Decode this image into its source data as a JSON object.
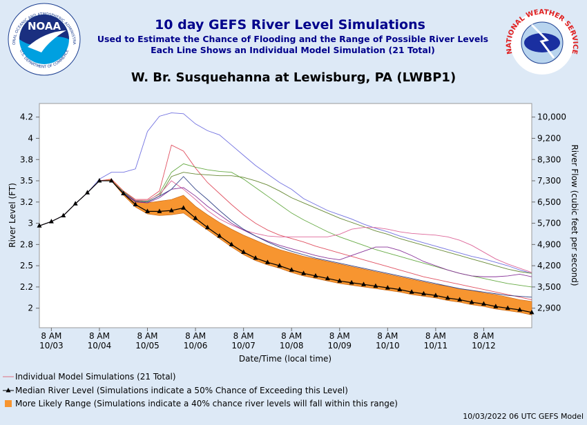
{
  "header": {
    "title": "10 day GEFS River Level Simulations",
    "subtitle1": "Used to Estimate the Chance of Flooding and the Range of Possible River Levels",
    "subtitle2": "Each Line Shows an Individual Model Simulation (21 Total)",
    "noaa_logo": "NOAA",
    "noaa_ring_top": "NATIONAL OCEANIC AND ATMOSPHERIC ADMINISTRATION",
    "noaa_ring_bottom": "U.S. DEPARTMENT OF COMMERCE",
    "nws_ring": "NATIONAL WEATHER SERVICE"
  },
  "chart_data": {
    "type": "line",
    "title": "W. Br. Susquehanna at Lewisburg, PA (LWBP1)",
    "xlabel": "Date/Time (local time)",
    "ylabel": "River Level (FT)",
    "y2label": "River Flow (cubic feet per second)",
    "x": [
      0,
      6,
      12,
      18,
      24,
      30,
      36,
      42,
      48,
      54,
      60,
      66,
      72,
      78,
      84,
      90,
      96,
      102,
      108,
      114,
      120,
      126,
      132,
      138,
      144,
      150,
      156,
      162,
      168,
      174,
      180,
      186,
      192,
      198,
      204,
      210,
      216,
      222,
      228,
      234,
      240,
      246
    ],
    "xlim": [
      0,
      246
    ],
    "xticks": [
      {
        "value": 6,
        "label": "8 AM",
        "date": "10/03"
      },
      {
        "value": 30,
        "label": "8 AM",
        "date": "10/04"
      },
      {
        "value": 54,
        "label": "8 AM",
        "date": "10/05"
      },
      {
        "value": 78,
        "label": "8 AM",
        "date": "10/06"
      },
      {
        "value": 102,
        "label": "8 AM",
        "date": "10/07"
      },
      {
        "value": 126,
        "label": "8 AM",
        "date": "10/08"
      },
      {
        "value": 150,
        "label": "8 AM",
        "date": "10/09"
      },
      {
        "value": 174,
        "label": "8 AM",
        "date": "10/10"
      },
      {
        "value": 198,
        "label": "8 AM",
        "date": "10/11"
      },
      {
        "value": 222,
        "label": "8 AM",
        "date": "10/12"
      }
    ],
    "ylim": [
      1.77,
      4.41
    ],
    "yticks": [
      {
        "value": 4.25,
        "label": "4.2"
      },
      4.0,
      {
        "value": 3.75,
        "label": "3.8"
      },
      3.5,
      {
        "value": 3.25,
        "label": "3.2"
      },
      3.0,
      {
        "value": 2.75,
        "label": "2.8"
      },
      2.5,
      {
        "value": 2.25,
        "label": "2.2"
      },
      2.0
    ],
    "y2ticks": [
      {
        "value": 10000,
        "label": "10,000"
      },
      {
        "value": 9200,
        "label": "9,200"
      },
      {
        "value": 8300,
        "label": "8,300"
      },
      {
        "value": 7300,
        "label": "7,300"
      },
      {
        "value": 6500,
        "label": "6,500"
      },
      {
        "value": 5700,
        "label": "5,700"
      },
      {
        "value": 4900,
        "label": "4,900"
      },
      {
        "value": 4200,
        "label": "4,200"
      },
      {
        "value": 3500,
        "label": "3,500"
      },
      {
        "value": 2900,
        "label": "2,900"
      }
    ],
    "simulations": {
      "name": "Individual Model Simulations (21 Total)",
      "color": "#e07080",
      "series": [
        {
          "color": "#7070e0",
          "values": [
            2.97,
            3.02,
            3.09,
            3.23,
            3.36,
            3.52,
            3.6,
            3.6,
            3.64,
            4.08,
            4.26,
            4.3,
            4.29,
            4.17,
            4.09,
            4.04,
            3.92,
            3.8,
            3.68,
            3.58,
            3.48,
            3.4,
            3.29,
            3.22,
            3.15,
            3.1,
            3.05,
            2.99,
            2.94,
            2.9,
            2.85,
            2.81,
            2.77,
            2.73,
            2.69,
            2.65,
            2.61,
            2.58,
            2.54,
            2.5,
            2.45,
            2.41
          ]
        },
        {
          "color": "#e05060",
          "values": [
            2.97,
            3.02,
            3.09,
            3.23,
            3.36,
            3.5,
            3.52,
            3.38,
            3.28,
            3.28,
            3.38,
            3.92,
            3.85,
            3.65,
            3.48,
            3.35,
            3.22,
            3.1,
            3.0,
            2.92,
            2.86,
            2.82,
            2.78,
            2.73,
            2.69,
            2.65,
            2.61,
            2.57,
            2.53,
            2.49,
            2.45,
            2.41,
            2.37,
            2.34,
            2.31,
            2.28,
            2.25,
            2.22,
            2.19,
            2.16,
            2.13,
            2.1
          ]
        },
        {
          "color": "#66aa44",
          "values": [
            2.97,
            3.02,
            3.09,
            3.23,
            3.36,
            3.5,
            3.5,
            3.37,
            3.27,
            3.26,
            3.35,
            3.6,
            3.7,
            3.66,
            3.63,
            3.61,
            3.6,
            3.52,
            3.42,
            3.32,
            3.22,
            3.12,
            3.04,
            2.97,
            2.9,
            2.84,
            2.79,
            2.74,
            2.69,
            2.65,
            2.61,
            2.57,
            2.53,
            2.49,
            2.45,
            2.41,
            2.38,
            2.35,
            2.32,
            2.29,
            2.27,
            2.25
          ]
        },
        {
          "color": "#668833",
          "values": [
            2.97,
            3.02,
            3.09,
            3.23,
            3.36,
            3.5,
            3.5,
            3.36,
            3.26,
            3.25,
            3.32,
            3.55,
            3.6,
            3.58,
            3.57,
            3.56,
            3.56,
            3.54,
            3.5,
            3.45,
            3.38,
            3.3,
            3.24,
            3.18,
            3.12,
            3.06,
            3.01,
            2.96,
            2.91,
            2.87,
            2.82,
            2.78,
            2.74,
            2.7,
            2.66,
            2.62,
            2.58,
            2.54,
            2.5,
            2.46,
            2.43,
            2.41
          ]
        },
        {
          "color": "#dd6699",
          "values": [
            2.97,
            3.02,
            3.09,
            3.23,
            3.36,
            3.5,
            3.5,
            3.36,
            3.27,
            3.27,
            3.34,
            3.5,
            3.4,
            3.28,
            3.15,
            3.05,
            2.98,
            2.92,
            2.88,
            2.85,
            2.84,
            2.84,
            2.84,
            2.84,
            2.84,
            2.87,
            2.93,
            2.95,
            2.95,
            2.93,
            2.9,
            2.88,
            2.87,
            2.86,
            2.84,
            2.8,
            2.74,
            2.66,
            2.58,
            2.52,
            2.47,
            2.42
          ]
        },
        {
          "color": "#883399",
          "values": [
            2.97,
            3.02,
            3.09,
            3.23,
            3.36,
            3.5,
            3.5,
            3.35,
            3.25,
            3.24,
            3.3,
            3.4,
            3.42,
            3.32,
            3.2,
            3.1,
            3.0,
            2.92,
            2.85,
            2.79,
            2.74,
            2.7,
            2.66,
            2.62,
            2.59,
            2.57,
            2.62,
            2.67,
            2.72,
            2.72,
            2.68,
            2.62,
            2.55,
            2.5,
            2.45,
            2.41,
            2.38,
            2.37,
            2.37,
            2.38,
            2.4,
            2.37
          ]
        },
        {
          "color": "#334488",
          "values": [
            2.97,
            3.02,
            3.09,
            3.23,
            3.36,
            3.5,
            3.5,
            3.36,
            3.26,
            3.25,
            3.32,
            3.4,
            3.55,
            3.4,
            3.28,
            3.15,
            3.03,
            2.93,
            2.85,
            2.78,
            2.72,
            2.67,
            2.63,
            2.59,
            2.56,
            2.53,
            2.5,
            2.47,
            2.44,
            2.41,
            2.38,
            2.35,
            2.32,
            2.29,
            2.26,
            2.23,
            2.21,
            2.19,
            2.17,
            2.15,
            2.14,
            2.13
          ]
        }
      ]
    },
    "range": {
      "name": "More Likely Range (Simulations indicate a 40% chance river levels will fall within this range)",
      "color": "#f79530",
      "lower": [
        2.97,
        3.02,
        3.09,
        3.23,
        3.36,
        3.5,
        3.5,
        3.33,
        3.19,
        3.11,
        3.09,
        3.1,
        3.12,
        3.02,
        2.92,
        2.82,
        2.72,
        2.63,
        2.56,
        2.51,
        2.47,
        2.42,
        2.38,
        2.35,
        2.32,
        2.29,
        2.27,
        2.25,
        2.23,
        2.21,
        2.19,
        2.16,
        2.14,
        2.12,
        2.09,
        2.07,
        2.04,
        2.02,
        1.99,
        1.97,
        1.95,
        1.92
      ],
      "upper": [
        2.97,
        3.02,
        3.09,
        3.23,
        3.36,
        3.5,
        3.52,
        3.38,
        3.27,
        3.24,
        3.26,
        3.28,
        3.33,
        3.2,
        3.1,
        3.01,
        2.93,
        2.86,
        2.8,
        2.74,
        2.69,
        2.65,
        2.61,
        2.58,
        2.55,
        2.52,
        2.49,
        2.46,
        2.43,
        2.4,
        2.37,
        2.34,
        2.31,
        2.28,
        2.26,
        2.23,
        2.21,
        2.18,
        2.16,
        2.13,
        2.1,
        2.08
      ]
    },
    "median": {
      "name": "Median River Level (Simulations indicate a 50% Chance of Exceeding this Level)",
      "color": "#000000",
      "values": [
        2.97,
        3.02,
        3.09,
        3.23,
        3.36,
        3.5,
        3.5,
        3.35,
        3.22,
        3.14,
        3.14,
        3.15,
        3.18,
        3.06,
        2.95,
        2.85,
        2.75,
        2.66,
        2.59,
        2.54,
        2.5,
        2.45,
        2.41,
        2.38,
        2.35,
        2.32,
        2.3,
        2.28,
        2.26,
        2.24,
        2.22,
        2.19,
        2.17,
        2.15,
        2.12,
        2.1,
        2.07,
        2.05,
        2.02,
        2.0,
        1.98,
        1.95
      ]
    }
  },
  "footer": "10/03/2022 06 UTC GEFS Model"
}
